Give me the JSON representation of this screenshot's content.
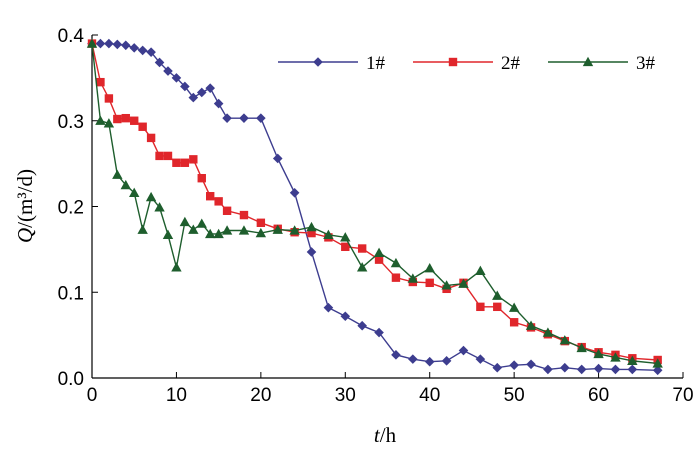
{
  "chart_data": {
    "type": "line",
    "xlabel": {
      "var": "t",
      "unit": "/h"
    },
    "ylabel": {
      "var": "Q",
      "unit": "/(m³/d)"
    },
    "xlim": [
      0,
      70
    ],
    "ylim": [
      0,
      0.4
    ],
    "xticks": [
      "0",
      "10",
      "20",
      "30",
      "40",
      "50",
      "60",
      "70"
    ],
    "yticks": [
      "0.0",
      "0.1",
      "0.2",
      "0.3",
      "0.4"
    ],
    "xtick_values": [
      0,
      10,
      20,
      30,
      40,
      50,
      60,
      70
    ],
    "ytick_values": [
      0,
      0.1,
      0.2,
      0.3,
      0.4
    ],
    "legend_position": "top-right",
    "series": [
      {
        "name": "1#",
        "color": "#3d3d8f",
        "marker": "diamond",
        "points": [
          [
            0,
            0.39
          ],
          [
            1,
            0.39
          ],
          [
            2,
            0.39
          ],
          [
            3,
            0.389
          ],
          [
            4,
            0.388
          ],
          [
            5,
            0.385
          ],
          [
            6,
            0.382
          ],
          [
            7,
            0.38
          ],
          [
            8,
            0.368
          ],
          [
            9,
            0.358
          ],
          [
            10,
            0.35
          ],
          [
            11,
            0.34
          ],
          [
            12,
            0.327
          ],
          [
            13,
            0.333
          ],
          [
            14,
            0.338
          ],
          [
            15,
            0.32
          ],
          [
            16,
            0.303
          ],
          [
            18,
            0.303
          ],
          [
            20,
            0.303
          ],
          [
            22,
            0.256
          ],
          [
            24,
            0.216
          ],
          [
            26,
            0.147
          ],
          [
            28,
            0.082
          ],
          [
            30,
            0.072
          ],
          [
            32,
            0.061
          ],
          [
            34,
            0.053
          ],
          [
            36,
            0.027
          ],
          [
            38,
            0.022
          ],
          [
            40,
            0.019
          ],
          [
            42,
            0.02
          ],
          [
            44,
            0.032
          ],
          [
            46,
            0.022
          ],
          [
            48,
            0.012
          ],
          [
            50,
            0.015
          ],
          [
            52,
            0.016
          ],
          [
            54,
            0.01
          ],
          [
            56,
            0.012
          ],
          [
            58,
            0.01
          ],
          [
            60,
            0.011
          ],
          [
            62,
            0.01
          ],
          [
            64,
            0.01
          ],
          [
            67,
            0.009
          ]
        ]
      },
      {
        "name": "2#",
        "color": "#e0262b",
        "marker": "square",
        "points": [
          [
            0,
            0.39
          ],
          [
            1,
            0.345
          ],
          [
            2,
            0.326
          ],
          [
            3,
            0.302
          ],
          [
            4,
            0.303
          ],
          [
            5,
            0.3
          ],
          [
            6,
            0.293
          ],
          [
            7,
            0.28
          ],
          [
            8,
            0.259
          ],
          [
            9,
            0.259
          ],
          [
            10,
            0.251
          ],
          [
            11,
            0.251
          ],
          [
            12,
            0.255
          ],
          [
            13,
            0.233
          ],
          [
            14,
            0.212
          ],
          [
            15,
            0.206
          ],
          [
            16,
            0.195
          ],
          [
            18,
            0.19
          ],
          [
            20,
            0.181
          ],
          [
            22,
            0.174
          ],
          [
            24,
            0.17
          ],
          [
            26,
            0.169
          ],
          [
            28,
            0.164
          ],
          [
            30,
            0.153
          ],
          [
            32,
            0.151
          ],
          [
            34,
            0.138
          ],
          [
            36,
            0.117
          ],
          [
            38,
            0.112
          ],
          [
            40,
            0.111
          ],
          [
            42,
            0.104
          ],
          [
            44,
            0.111
          ],
          [
            46,
            0.083
          ],
          [
            48,
            0.083
          ],
          [
            50,
            0.065
          ],
          [
            52,
            0.059
          ],
          [
            54,
            0.051
          ],
          [
            56,
            0.043
          ],
          [
            58,
            0.036
          ],
          [
            60,
            0.03
          ],
          [
            62,
            0.027
          ],
          [
            64,
            0.023
          ],
          [
            67,
            0.021
          ]
        ]
      },
      {
        "name": "3#",
        "color": "#1e5e2d",
        "marker": "triangle",
        "points": [
          [
            0,
            0.39
          ],
          [
            1,
            0.3
          ],
          [
            2,
            0.297
          ],
          [
            3,
            0.237
          ],
          [
            4,
            0.225
          ],
          [
            5,
            0.216
          ],
          [
            6,
            0.173
          ],
          [
            7,
            0.211
          ],
          [
            8,
            0.199
          ],
          [
            9,
            0.167
          ],
          [
            10,
            0.129
          ],
          [
            11,
            0.182
          ],
          [
            12,
            0.173
          ],
          [
            13,
            0.18
          ],
          [
            14,
            0.168
          ],
          [
            15,
            0.168
          ],
          [
            16,
            0.172
          ],
          [
            18,
            0.172
          ],
          [
            20,
            0.169
          ],
          [
            22,
            0.173
          ],
          [
            24,
            0.172
          ],
          [
            26,
            0.176
          ],
          [
            28,
            0.167
          ],
          [
            30,
            0.164
          ],
          [
            32,
            0.129
          ],
          [
            34,
            0.146
          ],
          [
            36,
            0.134
          ],
          [
            38,
            0.116
          ],
          [
            40,
            0.128
          ],
          [
            42,
            0.108
          ],
          [
            44,
            0.11
          ],
          [
            46,
            0.125
          ],
          [
            48,
            0.096
          ],
          [
            50,
            0.082
          ],
          [
            52,
            0.061
          ],
          [
            54,
            0.053
          ],
          [
            56,
            0.044
          ],
          [
            58,
            0.035
          ],
          [
            60,
            0.028
          ],
          [
            62,
            0.024
          ],
          [
            64,
            0.02
          ],
          [
            67,
            0.017
          ]
        ]
      }
    ]
  }
}
